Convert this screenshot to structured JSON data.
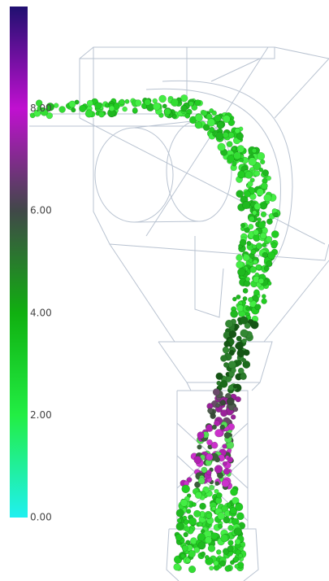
{
  "colorbar": {
    "range": [
      0,
      10
    ],
    "ticks": [
      {
        "value": 0,
        "label": "0.00"
      },
      {
        "value": 2,
        "label": "2.00"
      },
      {
        "value": 4,
        "label": "4.00"
      },
      {
        "value": 6,
        "label": "6.00"
      },
      {
        "value": 8,
        "label": "8.00"
      }
    ],
    "colors": [
      "#20f0f0",
      "#22ee44",
      "#10b010",
      "#404848",
      "#c010d0",
      "#201070"
    ]
  }
}
